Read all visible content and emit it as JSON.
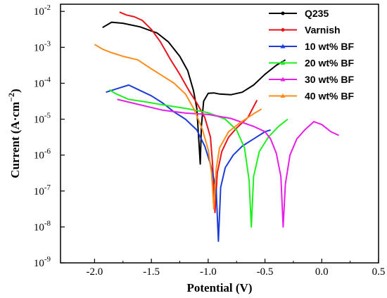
{
  "chart_data": {
    "type": "line",
    "xlabel": "Potential (V)",
    "ylabel_main": "Current (A·cm",
    "ylabel_exp": "−2",
    "ylabel_close": ")",
    "xlim": [
      -2.3,
      0.5
    ],
    "ylim_log10": [
      -9,
      -1.8
    ],
    "log_y": true,
    "x_ticks": [
      "-2.0",
      "-1.5",
      "-1.0",
      "-0.5",
      "0.0",
      "0.5"
    ],
    "x_tick_values": [
      -2.0,
      -1.5,
      -1.0,
      -0.5,
      0.0,
      0.5
    ],
    "y_ticks": [
      {
        "base": "10",
        "exp": "-9",
        "v": -9
      },
      {
        "base": "10",
        "exp": "-8",
        "v": -8
      },
      {
        "base": "10",
        "exp": "-7",
        "v": -7
      },
      {
        "base": "10",
        "exp": "-6",
        "v": -6
      },
      {
        "base": "10",
        "exp": "-5",
        "v": -5
      },
      {
        "base": "10",
        "exp": "-4",
        "v": -4
      },
      {
        "base": "10",
        "exp": "-3",
        "v": -3
      },
      {
        "base": "10",
        "exp": "-2",
        "v": -2
      }
    ],
    "legend_position": "top-right",
    "series": [
      {
        "name": "Q235",
        "color": "#000000",
        "marker": "circle",
        "points": [
          [
            -1.93,
            -2.45
          ],
          [
            -1.85,
            -2.3
          ],
          [
            -1.75,
            -2.33
          ],
          [
            -1.6,
            -2.43
          ],
          [
            -1.45,
            -2.6
          ],
          [
            -1.35,
            -2.85
          ],
          [
            -1.25,
            -3.25
          ],
          [
            -1.18,
            -3.65
          ],
          [
            -1.13,
            -4.2
          ],
          [
            -1.1,
            -4.7
          ],
          [
            -1.08,
            -5.7
          ],
          [
            -1.07,
            -6.25
          ],
          [
            -1.06,
            -5.2
          ],
          [
            -1.04,
            -4.5
          ],
          [
            -1.0,
            -4.28
          ],
          [
            -0.95,
            -4.27
          ],
          [
            -0.9,
            -4.3
          ],
          [
            -0.8,
            -4.32
          ],
          [
            -0.7,
            -4.25
          ],
          [
            -0.6,
            -4.05
          ],
          [
            -0.5,
            -3.75
          ],
          [
            -0.4,
            -3.5
          ],
          [
            -0.32,
            -3.35
          ]
        ]
      },
      {
        "name": "Varnish",
        "color": "#e8141b",
        "marker": "circle",
        "points": [
          [
            -1.78,
            -2.02
          ],
          [
            -1.72,
            -2.1
          ],
          [
            -1.65,
            -2.15
          ],
          [
            -1.58,
            -2.25
          ],
          [
            -1.5,
            -2.5
          ],
          [
            -1.42,
            -2.85
          ],
          [
            -1.33,
            -3.35
          ],
          [
            -1.25,
            -3.75
          ],
          [
            -1.17,
            -4.2
          ],
          [
            -1.1,
            -4.55
          ],
          [
            -1.03,
            -4.95
          ],
          [
            -0.98,
            -5.5
          ],
          [
            -0.96,
            -6.3
          ],
          [
            -0.94,
            -7.6
          ],
          [
            -0.92,
            -6.5
          ],
          [
            -0.88,
            -5.9
          ],
          [
            -0.82,
            -5.5
          ],
          [
            -0.75,
            -5.25
          ],
          [
            -0.65,
            -4.95
          ],
          [
            -0.57,
            -4.47
          ]
        ]
      },
      {
        "name": "10 wt% BF",
        "color": "#1c3cd6",
        "marker": "triangle",
        "points": [
          [
            -1.9,
            -4.25
          ],
          [
            -1.8,
            -4.15
          ],
          [
            -1.7,
            -4.05
          ],
          [
            -1.6,
            -4.2
          ],
          [
            -1.5,
            -4.35
          ],
          [
            -1.4,
            -4.55
          ],
          [
            -1.3,
            -4.8
          ],
          [
            -1.2,
            -5.0
          ],
          [
            -1.1,
            -5.3
          ],
          [
            -1.03,
            -5.75
          ],
          [
            -0.98,
            -6.25
          ],
          [
            -0.93,
            -6.95
          ],
          [
            -0.91,
            -8.4
          ],
          [
            -0.89,
            -6.9
          ],
          [
            -0.85,
            -6.35
          ],
          [
            -0.78,
            -6.0
          ],
          [
            -0.7,
            -5.75
          ],
          [
            -0.6,
            -5.55
          ],
          [
            -0.5,
            -5.35
          ],
          [
            -0.45,
            -5.3
          ]
        ]
      },
      {
        "name": "20 wt% BF",
        "color": "#1ef01e",
        "marker": "triangle",
        "points": [
          [
            -1.87,
            -4.18
          ],
          [
            -1.82,
            -4.28
          ],
          [
            -1.7,
            -4.45
          ],
          [
            -1.55,
            -4.52
          ],
          [
            -1.4,
            -4.6
          ],
          [
            -1.2,
            -4.7
          ],
          [
            -1.0,
            -4.82
          ],
          [
            -0.85,
            -5.0
          ],
          [
            -0.75,
            -5.3
          ],
          [
            -0.68,
            -5.8
          ],
          [
            -0.64,
            -6.7
          ],
          [
            -0.62,
            -8.0
          ],
          [
            -0.6,
            -6.6
          ],
          [
            -0.55,
            -5.9
          ],
          [
            -0.47,
            -5.5
          ],
          [
            -0.38,
            -5.2
          ],
          [
            -0.3,
            -5.0
          ]
        ]
      },
      {
        "name": "30 wt% BF",
        "color": "#e61ee6",
        "marker": "triangle",
        "points": [
          [
            -1.8,
            -4.45
          ],
          [
            -1.6,
            -4.6
          ],
          [
            -1.4,
            -4.75
          ],
          [
            -1.2,
            -4.83
          ],
          [
            -1.0,
            -4.87
          ],
          [
            -0.8,
            -4.98
          ],
          [
            -0.6,
            -5.2
          ],
          [
            -0.5,
            -5.35
          ],
          [
            -0.45,
            -5.55
          ],
          [
            -0.4,
            -5.95
          ],
          [
            -0.36,
            -6.6
          ],
          [
            -0.34,
            -8.0
          ],
          [
            -0.32,
            -6.8
          ],
          [
            -0.28,
            -6.0
          ],
          [
            -0.22,
            -5.55
          ],
          [
            -0.15,
            -5.3
          ],
          [
            -0.07,
            -5.07
          ],
          [
            0.0,
            -5.15
          ],
          [
            0.08,
            -5.35
          ],
          [
            0.15,
            -5.45
          ]
        ]
      },
      {
        "name": "40 wt% BF",
        "color": "#ff8c1a",
        "marker": "triangle",
        "points": [
          [
            -2.0,
            -2.92
          ],
          [
            -1.93,
            -3.05
          ],
          [
            -1.85,
            -3.15
          ],
          [
            -1.75,
            -3.25
          ],
          [
            -1.62,
            -3.35
          ],
          [
            -1.5,
            -3.6
          ],
          [
            -1.4,
            -3.8
          ],
          [
            -1.3,
            -4.0
          ],
          [
            -1.2,
            -4.3
          ],
          [
            -1.12,
            -4.75
          ],
          [
            -1.05,
            -5.3
          ],
          [
            -1.0,
            -5.85
          ],
          [
            -0.97,
            -6.5
          ],
          [
            -0.95,
            -7.5
          ],
          [
            -0.93,
            -6.4
          ],
          [
            -0.9,
            -5.8
          ],
          [
            -0.82,
            -5.35
          ],
          [
            -0.72,
            -5.1
          ],
          [
            -0.6,
            -4.85
          ],
          [
            -0.53,
            -4.72
          ]
        ]
      }
    ]
  }
}
